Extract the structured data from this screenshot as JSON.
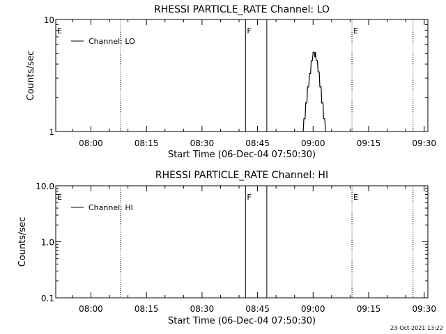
{
  "footer_timestamp": "23-Oct-2021 13:22",
  "chart_data": [
    {
      "type": "line",
      "title": "RHESSI PARTICLE_RATE Channel: LO",
      "xlabel": "Start Time (06-Dec-04 07:50:30)",
      "ylabel": "Counts/sec",
      "x_unit": "minutes after 07:50:30 (axis clock time)",
      "xlim": [
        "07:50:30",
        "09:31:00"
      ],
      "xticks": [
        "08:00",
        "08:15",
        "08:30",
        "08:45",
        "09:00",
        "09:15",
        "09:30"
      ],
      "yscale": "log",
      "ylim": [
        1,
        10
      ],
      "yticks": [
        "1",
        "10"
      ],
      "legend": {
        "position": "top-left",
        "entries": [
          "Channel: LO"
        ]
      },
      "markers": [
        {
          "label": "E",
          "time": "07:50:30",
          "style": "dotted"
        },
        {
          "label": "",
          "time": "08:08:00",
          "style": "dotted"
        },
        {
          "label": "F",
          "time": "08:41:45",
          "style": "solid"
        },
        {
          "label": "",
          "time": "08:47:30",
          "style": "solid"
        },
        {
          "label": "E",
          "time": "09:10:30",
          "style": "dotted"
        },
        {
          "label": "",
          "time": "09:27:00",
          "style": "dotted"
        }
      ],
      "series": [
        {
          "name": "Channel: LO",
          "points": [
            [
              "08:57:20",
              1.0
            ],
            [
              "08:57:30",
              1.3
            ],
            [
              "08:57:50",
              1.3
            ],
            [
              "08:58:00",
              1.8
            ],
            [
              "08:58:20",
              1.8
            ],
            [
              "08:58:30",
              2.5
            ],
            [
              "08:58:50",
              2.5
            ],
            [
              "08:59:00",
              3.3
            ],
            [
              "08:59:20",
              3.3
            ],
            [
              "08:59:30",
              4.3
            ],
            [
              "08:59:50",
              4.3
            ],
            [
              "09:00:00",
              5.1
            ],
            [
              "09:00:20",
              5.1
            ],
            [
              "09:00:30",
              4.6
            ],
            [
              "09:00:40",
              5.1
            ],
            [
              "09:00:50",
              4.3
            ],
            [
              "09:01:10",
              4.3
            ],
            [
              "09:01:20",
              3.4
            ],
            [
              "09:01:40",
              3.4
            ],
            [
              "09:01:50",
              2.5
            ],
            [
              "09:02:10",
              2.5
            ],
            [
              "09:02:20",
              1.8
            ],
            [
              "09:02:40",
              1.8
            ],
            [
              "09:02:50",
              1.3
            ],
            [
              "09:03:10",
              1.3
            ],
            [
              "09:03:20",
              1.0
            ]
          ]
        }
      ]
    },
    {
      "type": "line",
      "title": "RHESSI PARTICLE_RATE Channel: HI",
      "xlabel": "Start Time (06-Dec-04 07:50:30)",
      "ylabel": "Counts/sec",
      "x_unit": "minutes after 07:50:30 (axis clock time)",
      "xlim": [
        "07:50:30",
        "09:31:00"
      ],
      "xticks": [
        "08:00",
        "08:15",
        "08:30",
        "08:45",
        "09:00",
        "09:15",
        "09:30"
      ],
      "yscale": "log",
      "ylim": [
        0.1,
        10
      ],
      "yticks": [
        "0.1",
        "1.0",
        "10.0"
      ],
      "legend": {
        "position": "top-left",
        "entries": [
          "Channel: HI"
        ]
      },
      "markers": [
        {
          "label": "E",
          "time": "07:50:30",
          "style": "dotted"
        },
        {
          "label": "",
          "time": "08:08:00",
          "style": "dotted"
        },
        {
          "label": "F",
          "time": "08:41:45",
          "style": "solid"
        },
        {
          "label": "",
          "time": "08:47:30",
          "style": "solid"
        },
        {
          "label": "E",
          "time": "09:10:30",
          "style": "dotted"
        },
        {
          "label": "",
          "time": "09:27:00",
          "style": "dotted"
        }
      ],
      "series": [
        {
          "name": "Channel: HI",
          "points": []
        }
      ]
    }
  ]
}
